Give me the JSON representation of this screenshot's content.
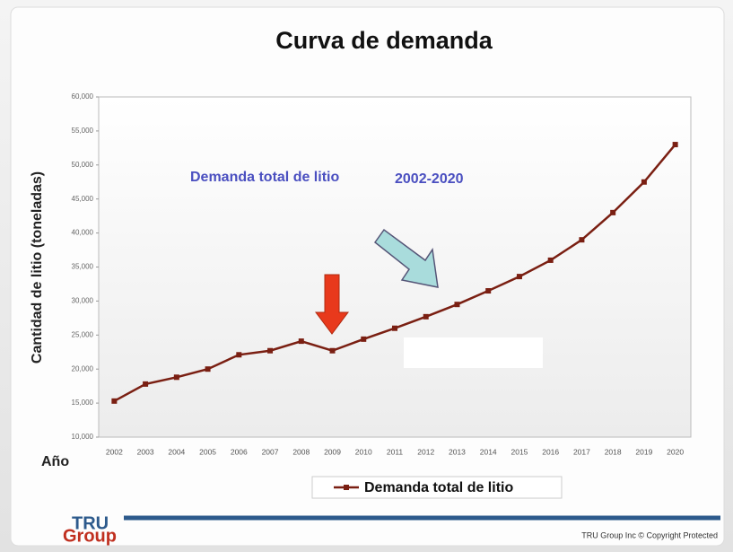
{
  "chart_data": {
    "type": "line",
    "title": "Curva de demanda",
    "y_label": "Cantidad de litio (toneladas)",
    "x_label": "Año",
    "annotation": "Demanda total de litio",
    "annotation_period": "2002-2020",
    "categories": [
      "2002",
      "2003",
      "2004",
      "2005",
      "2006",
      "2007",
      "2008",
      "2009",
      "2010",
      "2011",
      "2012",
      "2013",
      "2014",
      "2015",
      "2016",
      "2017",
      "2018",
      "2019",
      "2020"
    ],
    "series": [
      {
        "name": "Demanda total de litio",
        "color": "#7a1f12",
        "values": [
          15300,
          17800,
          18800,
          20000,
          22100,
          22700,
          24100,
          22700,
          24400,
          26000,
          27700,
          29500,
          31500,
          33600,
          36000,
          39000,
          43000,
          47500,
          53000
        ]
      }
    ],
    "ylim": [
      10000,
      60000
    ],
    "yticks": [
      {
        "value": 10000,
        "label": "10,000"
      },
      {
        "value": 15000,
        "label": "15,000"
      },
      {
        "value": 20000,
        "label": "20,000"
      },
      {
        "value": 25000,
        "label": "25,000"
      },
      {
        "value": 30000,
        "label": "30,000"
      },
      {
        "value": 35000,
        "label": "35,000"
      },
      {
        "value": 40000,
        "label": "40,000"
      },
      {
        "value": 45000,
        "label": "45,000"
      },
      {
        "value": 50000,
        "label": "50,000"
      },
      {
        "value": 55000,
        "label": "55,000"
      },
      {
        "value": 60000,
        "label": "60,000"
      }
    ],
    "grid": false,
    "legend": "bottom",
    "logo": [
      "TRU",
      "Group"
    ],
    "footer": "TRU Group Inc © Copyright Protected"
  }
}
